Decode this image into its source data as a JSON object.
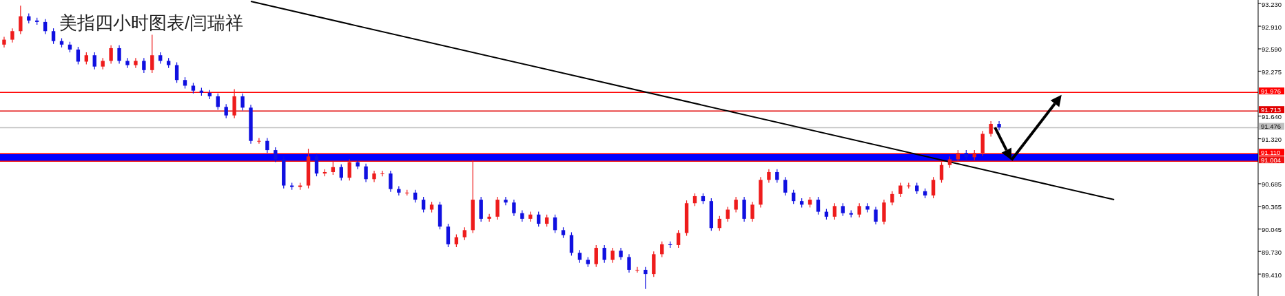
{
  "chart_data": {
    "type": "candlestick",
    "title": "美指四小时图表/闫瑞祥",
    "categories": [
      null,
      null,
      null,
      null,
      null,
      null,
      null,
      null,
      null,
      null,
      null,
      null,
      null,
      null,
      null,
      null,
      null,
      null,
      null,
      null,
      null,
      null,
      null,
      null,
      null,
      null,
      null,
      null,
      null,
      null,
      null,
      null,
      null,
      null,
      null,
      null,
      null,
      null,
      null,
      null,
      null,
      null,
      null,
      null,
      null,
      null,
      null,
      null,
      null,
      null,
      null,
      null,
      null,
      null,
      null,
      null,
      null,
      null,
      null,
      null,
      null,
      null,
      null,
      null,
      null,
      null,
      null,
      null,
      null,
      null,
      null,
      null,
      null,
      null,
      null,
      null,
      null,
      null,
      null,
      null,
      null,
      null,
      null,
      null,
      null,
      null,
      null,
      null,
      null,
      null,
      null,
      null,
      null,
      null,
      null,
      null,
      null,
      null,
      null,
      null,
      null,
      null,
      null,
      null,
      null,
      null,
      null,
      null,
      null,
      null,
      null,
      null,
      null,
      null,
      null,
      null,
      null,
      null,
      null,
      null,
      null,
      null,
      null,
      null,
      null,
      null,
      null,
      null,
      null,
      null,
      null,
      null,
      null,
      null,
      null,
      null,
      null,
      null,
      null,
      null,
      null,
      null,
      null,
      null,
      null,
      null,
      null,
      null,
      null,
      null,
      null,
      null,
      null
    ],
    "ohlc": [
      [
        92.65,
        92.76,
        92.61,
        92.72
      ],
      [
        92.72,
        92.88,
        92.68,
        92.84
      ],
      [
        92.84,
        93.2,
        92.8,
        93.05
      ],
      [
        93.05,
        93.09,
        92.95,
        92.99
      ],
      [
        92.99,
        93.03,
        92.93,
        92.97
      ],
      [
        92.97,
        93.01,
        92.8,
        92.84
      ],
      [
        92.84,
        92.88,
        92.66,
        92.7
      ],
      [
        92.7,
        92.74,
        92.61,
        92.65
      ],
      [
        92.65,
        92.69,
        92.54,
        92.58
      ],
      [
        92.58,
        92.62,
        92.37,
        92.41
      ],
      [
        92.41,
        92.54,
        92.37,
        92.5
      ],
      [
        92.5,
        92.54,
        92.3,
        92.34
      ],
      [
        92.34,
        92.46,
        92.3,
        92.42
      ],
      [
        92.42,
        92.64,
        92.38,
        92.6
      ],
      [
        92.6,
        92.64,
        92.38,
        92.42
      ],
      [
        92.42,
        92.46,
        92.32,
        92.36
      ],
      [
        92.36,
        92.46,
        92.32,
        92.42
      ],
      [
        92.42,
        92.46,
        92.25,
        92.29
      ],
      [
        92.29,
        92.79,
        92.25,
        92.5
      ],
      [
        92.5,
        92.54,
        92.38,
        92.42
      ],
      [
        92.42,
        92.46,
        92.32,
        92.36
      ],
      [
        92.36,
        92.4,
        92.11,
        92.15
      ],
      [
        92.15,
        92.19,
        92.03,
        92.07
      ],
      [
        92.07,
        92.11,
        91.96,
        92.0
      ],
      [
        92.0,
        92.04,
        91.93,
        91.97
      ],
      [
        91.97,
        92.01,
        91.88,
        91.92
      ],
      [
        91.92,
        91.96,
        91.73,
        91.77
      ],
      [
        91.77,
        91.81,
        91.61,
        91.65
      ],
      [
        91.65,
        92.02,
        91.61,
        91.92
      ],
      [
        91.92,
        91.96,
        91.72,
        91.76
      ],
      [
        91.76,
        91.8,
        91.25,
        91.29
      ],
      [
        91.29,
        91.33,
        91.25,
        91.29
      ],
      [
        91.29,
        91.33,
        91.12,
        91.16
      ],
      [
        91.16,
        91.2,
        90.99,
        91.03
      ],
      [
        91.03,
        91.07,
        90.62,
        90.66
      ],
      [
        90.66,
        90.7,
        90.6,
        90.64
      ],
      [
        90.64,
        90.7,
        90.6,
        90.66
      ],
      [
        90.66,
        91.18,
        90.62,
        91.07
      ],
      [
        91.07,
        91.11,
        90.79,
        90.83
      ],
      [
        90.83,
        90.89,
        90.79,
        90.85
      ],
      [
        90.85,
        91.0,
        90.81,
        90.92
      ],
      [
        90.92,
        90.96,
        90.73,
        90.77
      ],
      [
        90.77,
        91.03,
        90.73,
        90.99
      ],
      [
        90.99,
        91.03,
        90.89,
        90.93
      ],
      [
        90.93,
        90.97,
        90.71,
        90.75
      ],
      [
        90.75,
        90.87,
        90.71,
        90.83
      ],
      [
        90.83,
        90.87,
        90.79,
        90.83
      ],
      [
        90.83,
        90.87,
        90.57,
        90.61
      ],
      [
        90.61,
        90.65,
        90.52,
        90.56
      ],
      [
        90.56,
        90.6,
        90.52,
        90.56
      ],
      [
        90.56,
        90.6,
        90.42,
        90.46
      ],
      [
        90.46,
        90.5,
        90.28,
        90.32
      ],
      [
        90.32,
        90.43,
        90.28,
        90.39
      ],
      [
        90.39,
        90.43,
        90.04,
        90.08
      ],
      [
        90.08,
        90.12,
        89.79,
        89.83
      ],
      [
        89.83,
        89.97,
        89.79,
        89.93
      ],
      [
        89.93,
        90.07,
        89.89,
        90.03
      ],
      [
        90.03,
        91.02,
        89.99,
        90.46
      ],
      [
        90.46,
        90.5,
        90.15,
        90.19
      ],
      [
        90.19,
        90.26,
        90.15,
        90.22
      ],
      [
        90.22,
        90.5,
        90.18,
        90.46
      ],
      [
        90.46,
        90.5,
        90.38,
        90.42
      ],
      [
        90.42,
        90.46,
        90.23,
        90.27
      ],
      [
        90.27,
        90.31,
        90.15,
        90.19
      ],
      [
        90.19,
        90.29,
        90.15,
        90.25
      ],
      [
        90.25,
        90.29,
        90.08,
        90.12
      ],
      [
        90.12,
        90.25,
        90.08,
        90.21
      ],
      [
        90.21,
        90.25,
        89.99,
        90.03
      ],
      [
        90.03,
        90.07,
        89.92,
        89.96
      ],
      [
        89.96,
        90.0,
        89.67,
        89.71
      ],
      [
        89.71,
        89.75,
        89.57,
        89.61
      ],
      [
        89.61,
        89.65,
        89.51,
        89.55
      ],
      [
        89.55,
        89.82,
        89.51,
        89.78
      ],
      [
        89.78,
        89.82,
        89.57,
        89.61
      ],
      [
        89.61,
        89.78,
        89.57,
        89.74
      ],
      [
        89.74,
        89.78,
        89.61,
        89.65
      ],
      [
        89.65,
        89.69,
        89.43,
        89.47
      ],
      [
        89.47,
        89.51,
        89.43,
        89.47
      ],
      [
        89.47,
        89.51,
        89.2,
        89.41
      ],
      [
        89.41,
        89.73,
        89.37,
        89.69
      ],
      [
        89.69,
        89.87,
        89.65,
        89.83
      ],
      [
        89.83,
        89.87,
        89.78,
        89.82
      ],
      [
        89.82,
        90.03,
        89.78,
        89.99
      ],
      [
        89.99,
        90.45,
        89.95,
        90.41
      ],
      [
        90.41,
        90.55,
        90.37,
        90.51
      ],
      [
        90.51,
        90.55,
        90.4,
        90.44
      ],
      [
        90.44,
        90.48,
        90.02,
        90.06
      ],
      [
        90.06,
        90.23,
        90.02,
        90.19
      ],
      [
        90.19,
        90.36,
        90.15,
        90.32
      ],
      [
        90.32,
        90.5,
        90.28,
        90.46
      ],
      [
        90.46,
        90.5,
        90.15,
        90.19
      ],
      [
        90.19,
        90.43,
        90.15,
        90.39
      ],
      [
        90.39,
        90.78,
        90.35,
        90.74
      ],
      [
        90.74,
        90.89,
        90.7,
        90.85
      ],
      [
        90.85,
        90.89,
        90.7,
        90.74
      ],
      [
        90.74,
        90.78,
        90.52,
        90.56
      ],
      [
        90.56,
        90.6,
        90.4,
        90.44
      ],
      [
        90.44,
        90.48,
        90.35,
        90.39
      ],
      [
        90.39,
        90.5,
        90.35,
        90.46
      ],
      [
        90.46,
        90.5,
        90.25,
        90.29
      ],
      [
        90.29,
        90.33,
        90.18,
        90.22
      ],
      [
        90.22,
        90.41,
        90.18,
        90.37
      ],
      [
        90.37,
        90.41,
        90.23,
        90.27
      ],
      [
        90.27,
        90.31,
        90.21,
        90.25
      ],
      [
        90.25,
        90.41,
        90.21,
        90.37
      ],
      [
        90.37,
        90.41,
        90.28,
        90.32
      ],
      [
        90.32,
        90.36,
        90.11,
        90.15
      ],
      [
        90.15,
        90.46,
        90.11,
        90.42
      ],
      [
        90.42,
        90.58,
        90.38,
        90.54
      ],
      [
        90.54,
        90.7,
        90.5,
        90.66
      ],
      [
        90.66,
        90.7,
        90.62,
        90.66
      ],
      [
        90.66,
        90.7,
        90.54,
        90.58
      ],
      [
        90.58,
        90.62,
        90.48,
        90.52
      ],
      [
        90.52,
        90.78,
        90.48,
        90.74
      ],
      [
        90.74,
        90.99,
        90.7,
        90.95
      ],
      [
        90.95,
        91.07,
        90.91,
        91.03
      ],
      [
        91.03,
        91.16,
        90.99,
        91.12
      ],
      [
        91.12,
        91.16,
        91.02,
        91.06
      ],
      [
        91.06,
        91.16,
        91.02,
        91.12
      ],
      [
        91.12,
        91.43,
        91.08,
        91.39
      ],
      [
        91.39,
        91.57,
        91.35,
        91.53
      ],
      [
        91.53,
        91.57,
        91.44,
        91.48
      ],
      null,
      null,
      null,
      null,
      null,
      null,
      null,
      null,
      null,
      null,
      null,
      null,
      null,
      null,
      null,
      null,
      null,
      null,
      null,
      null,
      null,
      null,
      null,
      null,
      null,
      null,
      null,
      null,
      null,
      null,
      null
    ],
    "series": [
      {
        "type": "line",
        "color": "#000000",
        "values": [
          null,
          null,
          null,
          null,
          null,
          null,
          null,
          null,
          null,
          null,
          null,
          null,
          null,
          null,
          null,
          null,
          null,
          null,
          null,
          null,
          null,
          null,
          null,
          null,
          null,
          null,
          null,
          null,
          null,
          null,
          93.26,
          null,
          null,
          null,
          null,
          null,
          null,
          null,
          null,
          null,
          null,
          null,
          null,
          null,
          null,
          null,
          null,
          null,
          null,
          null,
          null,
          null,
          null,
          null,
          null,
          null,
          null,
          null,
          null,
          null,
          null,
          null,
          null,
          null,
          null,
          null,
          null,
          null,
          null,
          null,
          null,
          null,
          null,
          null,
          null,
          null,
          null,
          null,
          null,
          null,
          null,
          null,
          null,
          null,
          null,
          null,
          null,
          null,
          null,
          null,
          null,
          null,
          null,
          null,
          null,
          null,
          null,
          null,
          null,
          null,
          null,
          null,
          null,
          null,
          null,
          null,
          null,
          null,
          null,
          null,
          null,
          null,
          null,
          null,
          null,
          null,
          null,
          null,
          null,
          null,
          null,
          null,
          null,
          null,
          null,
          null,
          null,
          null,
          null,
          null,
          null,
          null,
          null,
          null,
          null,
          90.46,
          null,
          null,
          null,
          null,
          null,
          null,
          null,
          null,
          null,
          null,
          null,
          null,
          null,
          null,
          null,
          null,
          null
        ]
      }
    ],
    "ylim": [
      89.1,
      93.28
    ],
    "yticks": [
      {
        "value": 93.23,
        "label": "93.230"
      },
      {
        "value": 92.91,
        "label": "92.910"
      },
      {
        "value": 92.59,
        "label": "92.590"
      },
      {
        "value": 92.275,
        "label": "92.275"
      },
      {
        "value": 91.64,
        "label": "91.640"
      },
      {
        "value": 91.32,
        "label": "91.320"
      },
      {
        "value": 90.685,
        "label": "90.685"
      },
      {
        "value": 90.365,
        "label": "90.365"
      },
      {
        "value": 90.045,
        "label": "90.045"
      },
      {
        "value": 89.73,
        "label": "89.730"
      },
      {
        "value": 89.41,
        "label": "89.410"
      }
    ],
    "bands": [
      {
        "axis": "y",
        "from": 91.004,
        "to": 91.11,
        "color": "#0000ff"
      }
    ],
    "ref_lines": [
      {
        "axis": "y",
        "value": 91.976,
        "label": "91.976",
        "color": "#ff0000"
      },
      {
        "axis": "y",
        "value": 91.713,
        "label": "91.713",
        "color": "#e00000"
      },
      {
        "axis": "y",
        "value": 91.476,
        "label": "91.476",
        "color": "#c0c0c0"
      },
      {
        "axis": "y",
        "value": 91.11,
        "label": "91.110",
        "color": "#ff0000"
      },
      {
        "axis": "y",
        "value": 91.004,
        "label": "91.004",
        "color": "#ee1111"
      }
    ],
    "grid": false
  }
}
